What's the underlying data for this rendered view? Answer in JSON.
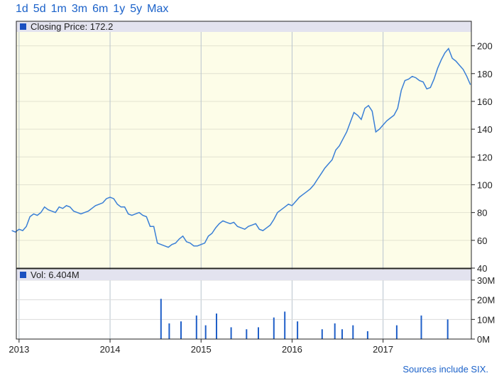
{
  "range_links": [
    "1d",
    "5d",
    "1m",
    "3m",
    "6m",
    "1y",
    "5y",
    "Max"
  ],
  "source_note": "Sources include SIX.",
  "colors": {
    "line": "#3a7fd6",
    "bars": "#1f5fc8",
    "price_bg": "#fdfde8",
    "legend_bg": "#e3e3ef",
    "legend_box": "#1a4fc0",
    "grid": "#b8c4ce"
  },
  "chart_data": [
    {
      "type": "line",
      "legend": "Closing Price: 172.2",
      "ylim": [
        40,
        210
      ],
      "y_ticks": [
        "200",
        "180",
        "160",
        "140",
        "120",
        "100",
        "80",
        "60",
        "40"
      ],
      "grid": true,
      "legend_placement": "top-left",
      "series": [
        {
          "x": [
            2012.92,
            2012.96,
            2013.0,
            2013.04,
            2013.08,
            2013.12,
            2013.16,
            2013.2,
            2013.24,
            2013.28,
            2013.32,
            2013.36,
            2013.4,
            2013.44,
            2013.48,
            2013.52,
            2013.56,
            2013.6,
            2013.64,
            2013.68,
            2013.72,
            2013.76,
            2013.8,
            2013.84,
            2013.88,
            2013.92,
            2013.96,
            2014.0,
            2014.04,
            2014.08,
            2014.12,
            2014.16,
            2014.2,
            2014.24,
            2014.28,
            2014.32,
            2014.36,
            2014.4,
            2014.44,
            2014.48,
            2014.52,
            2014.56,
            2014.6,
            2014.64,
            2014.68,
            2014.72,
            2014.76,
            2014.8,
            2014.84,
            2014.88,
            2014.92,
            2014.96,
            2015.0,
            2015.04,
            2015.08,
            2015.12,
            2015.16,
            2015.2,
            2015.24,
            2015.28,
            2015.32,
            2015.36,
            2015.4,
            2015.44,
            2015.48,
            2015.52,
            2015.56,
            2015.6,
            2015.64,
            2015.68,
            2015.72,
            2015.76,
            2015.8,
            2015.84,
            2015.88,
            2015.92,
            2015.96,
            2016.0,
            2016.04,
            2016.08,
            2016.12,
            2016.16,
            2016.2,
            2016.24,
            2016.28,
            2016.32,
            2016.36,
            2016.4,
            2016.44,
            2016.48,
            2016.52,
            2016.56,
            2016.6,
            2016.64,
            2016.68,
            2016.72,
            2016.76,
            2016.8,
            2016.84,
            2016.88,
            2016.92,
            2016.96,
            2017.0,
            2017.04,
            2017.08,
            2017.12,
            2017.16,
            2017.2,
            2017.24,
            2017.28,
            2017.32,
            2017.36,
            2017.4,
            2017.44,
            2017.48,
            2017.52,
            2017.56,
            2017.6,
            2017.64,
            2017.68,
            2017.72,
            2017.76,
            2017.8,
            2017.84,
            2017.88,
            2017.92,
            2017.96
          ],
          "y": [
            67,
            66,
            68,
            67,
            70,
            77,
            79,
            78,
            80,
            84,
            82,
            81,
            80,
            84,
            83,
            85,
            84,
            81,
            80,
            79,
            80,
            81,
            83,
            85,
            86,
            87,
            90,
            91,
            90,
            86,
            84,
            84,
            79,
            78,
            79,
            80,
            78,
            77,
            70,
            70,
            58,
            57,
            56,
            55,
            57,
            58,
            61,
            63,
            59,
            58,
            56,
            56,
            57,
            58,
            63,
            65,
            69,
            72,
            74,
            73,
            72,
            73,
            70,
            69,
            68,
            70,
            71,
            72,
            68,
            67,
            69,
            71,
            75,
            80,
            82,
            84,
            86,
            85,
            88,
            91,
            93,
            95,
            97,
            100,
            104,
            108,
            112,
            115,
            118,
            125,
            128,
            133,
            138,
            145,
            152,
            150,
            147,
            155,
            157,
            153,
            138,
            140,
            143,
            146,
            148,
            150,
            155,
            168,
            175,
            176,
            178,
            177,
            175,
            174,
            169,
            170,
            176,
            184,
            190,
            195,
            198,
            191,
            189,
            186,
            183,
            178,
            172
          ]
        }
      ]
    },
    {
      "type": "bar",
      "legend": "Vol: 6.404M",
      "ylim": [
        0,
        30
      ],
      "y_ticks": [
        "30M",
        "20M",
        "10M",
        "0M"
      ],
      "x_ticks": [
        "2013",
        "2014",
        "2015",
        "2016",
        "2017"
      ],
      "series": [
        {
          "x": [
            2014.56,
            2014.65,
            2014.78,
            2014.95,
            2015.05,
            2015.17,
            2015.33,
            2015.5,
            2015.63,
            2015.8,
            2015.92,
            2016.06,
            2016.33,
            2016.47,
            2016.55,
            2016.67,
            2016.83,
            2017.15,
            2017.42,
            2017.71
          ],
          "values": [
            20.5,
            8,
            9,
            12,
            7,
            13,
            6,
            5,
            6,
            11,
            14,
            9,
            5,
            8,
            5,
            7,
            4,
            7,
            12,
            10
          ]
        }
      ]
    }
  ]
}
